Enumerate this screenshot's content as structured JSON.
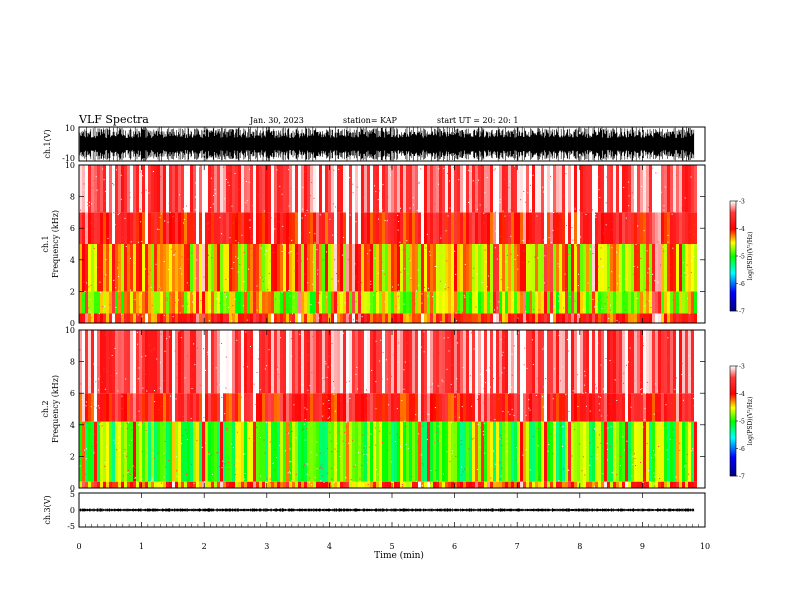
{
  "header": {
    "title": "VLF Spectra",
    "date": "Jan. 30, 2023",
    "station": "station= KAP",
    "start": "start  UT =   20: 20: 1"
  },
  "chart_data": [
    {
      "type": "line",
      "id": "ch1_waveform",
      "ylabel": "ch.1(V)",
      "ylim": [
        -10,
        10
      ],
      "ytick_labels": [
        "10",
        "-10"
      ],
      "xlim": [
        0,
        10
      ],
      "data_end_min": 9.83,
      "description_values": {
        "typical_min": -10,
        "typical_max": 10
      }
    },
    {
      "type": "heatmap",
      "id": "ch1_spectrogram",
      "title": "ch.1",
      "ylabel": "Frequency (kHz)",
      "ylim": [
        0,
        10
      ],
      "ytick_labels": [
        "0",
        "2",
        "4",
        "6",
        "8",
        "10"
      ],
      "xlim": [
        0,
        10
      ],
      "data_end_min": 9.83,
      "colorbar": {
        "label": "log(PSD)(V²/Hz)",
        "range": [
          -7,
          -3
        ],
        "tick_labels": [
          "-3",
          "-4",
          "-5",
          "-6",
          "-7"
        ],
        "colors": [
          "#000080",
          "#0000ff",
          "#00ffff",
          "#00ff00",
          "#ffff00",
          "#ff0000",
          "#ffffff"
        ]
      },
      "bands": [
        {
          "f_low": 0,
          "f_high": 0.6,
          "level": -4.0
        },
        {
          "f_low": 0.6,
          "f_high": 2.0,
          "level": -4.6
        },
        {
          "f_low": 2.0,
          "f_high": 5.0,
          "level": -4.4
        },
        {
          "f_low": 5.0,
          "f_high": 7.0,
          "level": -3.8
        },
        {
          "f_low": 7.0,
          "f_high": 10.0,
          "level": -3.4
        }
      ]
    },
    {
      "type": "heatmap",
      "id": "ch2_spectrogram",
      "title": "ch.2",
      "ylabel": "Frequency (kHz)",
      "ylim": [
        0,
        10
      ],
      "ytick_labels": [
        "0",
        "2",
        "4",
        "6",
        "8",
        "10"
      ],
      "xlim": [
        0,
        10
      ],
      "data_end_min": 9.83,
      "colorbar": {
        "label": "log(PSD)(V²/Hz)",
        "range": [
          -7,
          -3
        ],
        "tick_labels": [
          "-3",
          "-4",
          "-5",
          "-6",
          "-7"
        ],
        "colors": [
          "#000080",
          "#0000ff",
          "#00ffff",
          "#00ff00",
          "#ffff00",
          "#ff0000",
          "#ffffff"
        ]
      },
      "bands": [
        {
          "f_low": 0,
          "f_high": 0.4,
          "level": -4.2
        },
        {
          "f_low": 0.4,
          "f_high": 4.2,
          "level": -4.9
        },
        {
          "f_low": 4.2,
          "f_high": 6.0,
          "level": -3.8
        },
        {
          "f_low": 6.0,
          "f_high": 10.0,
          "level": -3.4
        }
      ]
    },
    {
      "type": "line",
      "id": "ch3_waveform",
      "ylabel": "ch.3(V)",
      "ylim": [
        -5,
        5
      ],
      "ytick_labels": [
        "5",
        "0",
        "-5"
      ],
      "xlim": [
        0,
        10
      ],
      "data_end_min": 9.83,
      "description_values": {
        "typical_min": -0.5,
        "typical_max": 0.5
      }
    }
  ],
  "xaxis": {
    "label": "Time (min)",
    "tick_labels": [
      "0",
      "1",
      "2",
      "3",
      "4",
      "5",
      "6",
      "7",
      "8",
      "9",
      "10"
    ]
  }
}
